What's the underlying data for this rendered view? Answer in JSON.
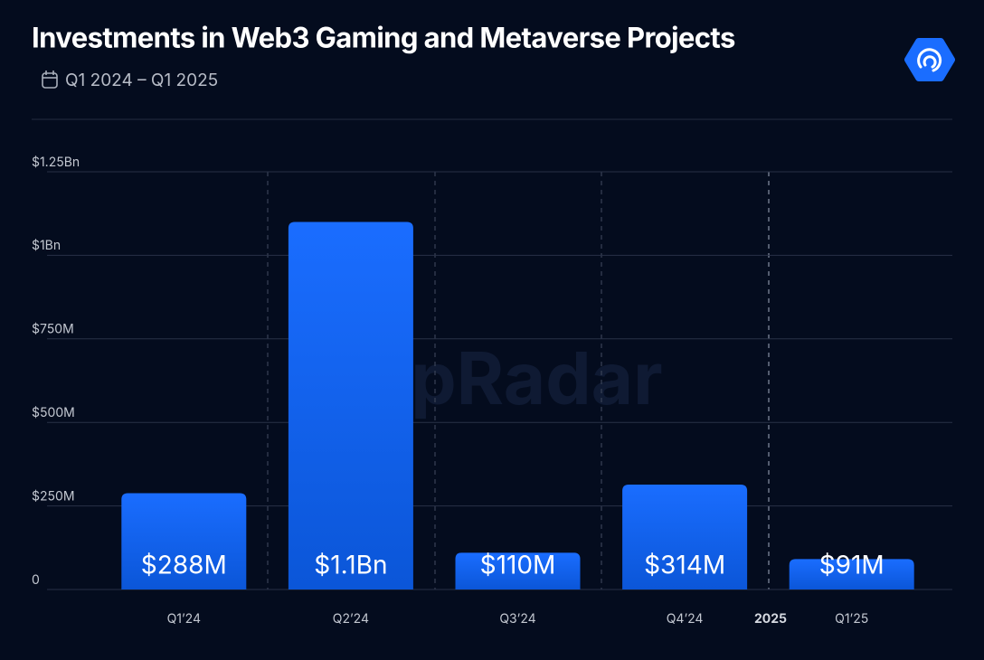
{
  "chart_data": {
    "type": "bar",
    "title": "Investments in Web3 Gaming and Metaverse Projects",
    "subtitle": "Q1 2024 – Q1 2025",
    "watermark": "appRadar",
    "annotation": "2025",
    "categories": [
      "Q1’24",
      "Q2’24",
      "Q3’24",
      "Q4’24",
      "Q1’25"
    ],
    "values": [
      288,
      1100,
      110,
      314,
      91
    ],
    "value_labels": [
      "$288M",
      "$1.1Bn",
      "$110M",
      "$314M",
      "$91M"
    ],
    "color": "#1a6dff",
    "ylim": [
      0,
      1250
    ],
    "yticks": [
      0,
      {
        "value": 250,
        "label": "$250M"
      },
      {
        "value": 500,
        "label": "$500M"
      },
      {
        "value": 750,
        "label": "$750M"
      },
      {
        "value": 1000,
        "label": "$1Bn"
      },
      {
        "value": 1250,
        "label": "$1.25Bn"
      }
    ],
    "grid": true
  }
}
